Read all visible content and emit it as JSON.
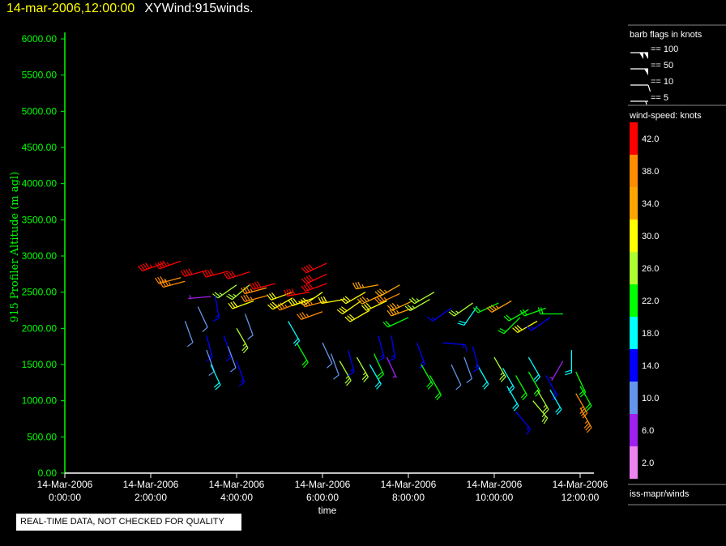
{
  "header": {
    "timestamp": "14-mar-2006,12:00:00",
    "plot_name": "XYWind:915winds."
  },
  "quality_notice": "REAL-TIME DATA, NOT CHECKED FOR QUALITY",
  "legend": {
    "barb_title": "barb flags in knots",
    "barb_items": [
      {
        "label": "== 100",
        "knots": 100
      },
      {
        "label": "== 50",
        "knots": 50
      },
      {
        "label": "== 10",
        "knots": 10
      },
      {
        "label": "== 5",
        "knots": 5
      }
    ],
    "color_title": "wind-speed: knots",
    "color_bins": [
      {
        "label": "42.0",
        "color": "#ff0000"
      },
      {
        "label": "38.0",
        "color": "#ff8c00"
      },
      {
        "label": "34.0",
        "color": "#ffa500"
      },
      {
        "label": "30.0",
        "color": "#ffff00"
      },
      {
        "label": "26.0",
        "color": "#adff2f"
      },
      {
        "label": "22.0",
        "color": "#00ff00"
      },
      {
        "label": "18.0",
        "color": "#00ffff"
      },
      {
        "label": "14.0",
        "color": "#0000ff"
      },
      {
        "label": "10.0",
        "color": "#6495ed"
      },
      {
        "label": "6.0",
        "color": "#a020f0"
      },
      {
        "label": "2.0",
        "color": "#ee82ee"
      }
    ],
    "source": "iss-mapr/winds"
  },
  "chart_data": {
    "type": "scatter",
    "mark": "wind-barb",
    "xlabel": "time",
    "ylabel": "915 Profiler Altitude (m agl)",
    "xlim_hours": [
      0,
      12.3
    ],
    "ylim": [
      0,
      6200
    ],
    "xticks": [
      {
        "date": "14-Mar-2006",
        "time": "0:00:00",
        "hour": 0
      },
      {
        "date": "14-Mar-2006",
        "time": "2:00:00",
        "hour": 2
      },
      {
        "date": "14-Mar-2006",
        "time": "4:00:00",
        "hour": 4
      },
      {
        "date": "14-Mar-2006",
        "time": "6:00:00",
        "hour": 6
      },
      {
        "date": "14-Mar-2006",
        "time": "8:00:00",
        "hour": 8
      },
      {
        "date": "14-Mar-2006",
        "time": "10:00:00",
        "hour": 10
      },
      {
        "date": "14-Mar-2006",
        "time": "12:00:00",
        "hour": 12
      }
    ],
    "yticks": [
      "0.00",
      "500.00",
      "1000.00",
      "1500.00",
      "2000.00",
      "2500.00",
      "3000.00",
      "3500.00",
      "4000.00",
      "4500.00",
      "5000.00",
      "5500.00",
      "6000.00"
    ],
    "fields": [
      "hour",
      "altitude_m",
      "speed_knots",
      "direction_deg"
    ],
    "points": [
      [
        2.3,
        2900,
        44,
        250
      ],
      [
        2.7,
        2930,
        44,
        250
      ],
      [
        2.7,
        2700,
        36,
        255
      ],
      [
        2.8,
        2650,
        36,
        255
      ],
      [
        3.3,
        2800,
        40,
        255
      ],
      [
        3.8,
        2790,
        40,
        255
      ],
      [
        4.3,
        2780,
        40,
        252
      ],
      [
        4.9,
        2620,
        40,
        255
      ],
      [
        4.3,
        2600,
        26,
        230
      ],
      [
        4.7,
        2560,
        36,
        255
      ],
      [
        4.7,
        2450,
        36,
        255
      ],
      [
        4.4,
        2380,
        30,
        250
      ],
      [
        5.3,
        2500,
        30,
        250
      ],
      [
        5.7,
        2500,
        40,
        260
      ],
      [
        5.5,
        2360,
        36,
        250
      ],
      [
        6.1,
        2900,
        42,
        245
      ],
      [
        6.1,
        2750,
        42,
        245
      ],
      [
        6.1,
        2620,
        40,
        250
      ],
      [
        6.0,
        2500,
        28,
        235
      ],
      [
        6.1,
        2380,
        36,
        255
      ],
      [
        6.0,
        2230,
        36,
        250
      ],
      [
        5.3,
        2420,
        30,
        240
      ],
      [
        5.8,
        2420,
        28,
        250
      ],
      [
        6.5,
        2400,
        30,
        260
      ],
      [
        6.9,
        2380,
        28,
        235
      ],
      [
        7.0,
        2500,
        30,
        240
      ],
      [
        7.3,
        2600,
        34,
        260
      ],
      [
        7.4,
        2470,
        34,
        245
      ],
      [
        7.5,
        2380,
        28,
        245
      ],
      [
        7.1,
        2250,
        30,
        240
      ],
      [
        7.8,
        2600,
        34,
        240
      ],
      [
        7.8,
        2480,
        36,
        245
      ],
      [
        8.1,
        2380,
        34,
        245
      ],
      [
        8.1,
        2280,
        34,
        250
      ],
      [
        8.5,
        2400,
        26,
        240
      ],
      [
        8.6,
        2500,
        26,
        240
      ],
      [
        8.0,
        2150,
        22,
        245
      ],
      [
        9.0,
        2280,
        14,
        235
      ],
      [
        9.5,
        2350,
        26,
        235
      ],
      [
        9.6,
        2300,
        18,
        215
      ],
      [
        10.1,
        2350,
        22,
        245
      ],
      [
        10.4,
        2380,
        34,
        240
      ],
      [
        10.8,
        2260,
        22,
        240
      ],
      [
        10.6,
        2150,
        22,
        225
      ],
      [
        11.0,
        2100,
        30,
        240
      ],
      [
        11.2,
        2280,
        22,
        250
      ],
      [
        11.6,
        2200,
        22,
        270
      ],
      [
        11.3,
        2150,
        14,
        235
      ],
      [
        3.4,
        2440,
        6,
        265
      ],
      [
        4.0,
        2600,
        26,
        235
      ],
      [
        2.8,
        2100,
        10,
        160
      ],
      [
        3.1,
        2300,
        10,
        155
      ],
      [
        3.3,
        1900,
        14,
        165
      ],
      [
        3.3,
        1700,
        10,
        160
      ],
      [
        3.4,
        1500,
        18,
        155
      ],
      [
        3.7,
        1900,
        14,
        160
      ],
      [
        3.8,
        1750,
        10,
        160
      ],
      [
        4.0,
        1550,
        14,
        160
      ],
      [
        4.0,
        2000,
        26,
        150
      ],
      [
        4.2,
        2200,
        10,
        160
      ],
      [
        3.5,
        2450,
        14,
        170
      ],
      [
        5.4,
        1800,
        22,
        150
      ],
      [
        6.0,
        1800,
        10,
        155
      ],
      [
        6.2,
        1650,
        10,
        160
      ],
      [
        6.4,
        1550,
        26,
        150
      ],
      [
        6.6,
        1700,
        14,
        165
      ],
      [
        6.8,
        1600,
        26,
        150
      ],
      [
        7.1,
        1500,
        18,
        150
      ],
      [
        7.2,
        1650,
        22,
        155
      ],
      [
        7.3,
        1900,
        14,
        165
      ],
      [
        7.6,
        1900,
        14,
        170
      ],
      [
        7.5,
        1600,
        6,
        155
      ],
      [
        8.2,
        1800,
        14,
        160
      ],
      [
        8.3,
        1500,
        22,
        150
      ],
      [
        8.5,
        1350,
        22,
        150
      ],
      [
        8.8,
        1800,
        14,
        95
      ],
      [
        9.0,
        1500,
        10,
        155
      ],
      [
        9.3,
        1600,
        10,
        160
      ],
      [
        9.6,
        1500,
        18,
        150
      ],
      [
        9.5,
        1750,
        14,
        165
      ],
      [
        10.0,
        1600,
        26,
        150
      ],
      [
        10.2,
        1450,
        18,
        150
      ],
      [
        10.5,
        1350,
        22,
        150
      ],
      [
        10.3,
        1200,
        18,
        150
      ],
      [
        10.8,
        1600,
        18,
        150
      ],
      [
        10.8,
        1400,
        22,
        150
      ],
      [
        11.0,
        1150,
        26,
        150
      ],
      [
        11.2,
        1350,
        14,
        150
      ],
      [
        11.3,
        1150,
        18,
        150
      ],
      [
        11.8,
        1700,
        18,
        180
      ],
      [
        11.9,
        1400,
        22,
        155
      ],
      [
        12.0,
        1200,
        22,
        150
      ],
      [
        11.9,
        1100,
        36,
        150
      ],
      [
        12.0,
        900,
        36,
        150
      ],
      [
        10.5,
        850,
        14,
        140
      ],
      [
        10.9,
        1000,
        26,
        140
      ],
      [
        11.6,
        1550,
        6,
        210
      ],
      [
        5.2,
        2100,
        18,
        150
      ]
    ]
  }
}
